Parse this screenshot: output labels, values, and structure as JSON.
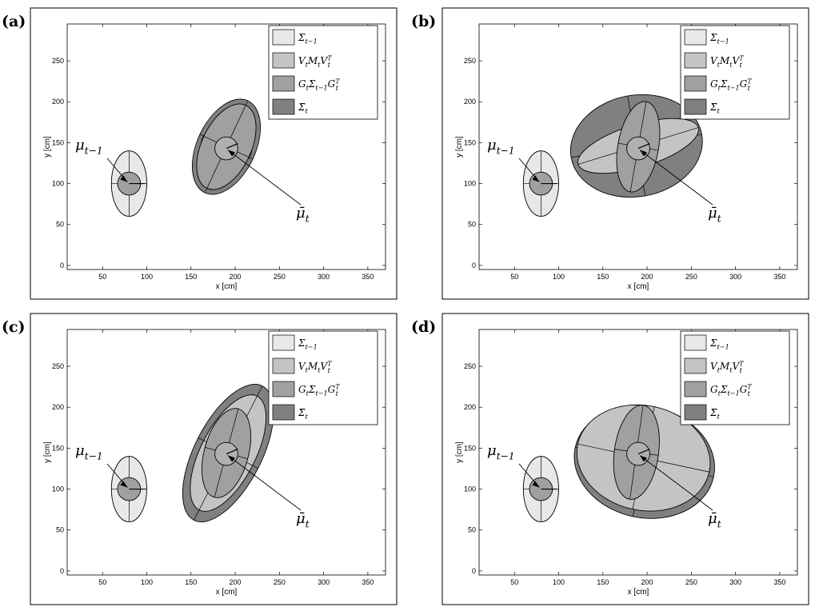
{
  "colors": {
    "sigma_prev": "#e8e8e8",
    "vmv": "#c4c4c4",
    "gsg": "#a0a0a0",
    "sigma_bar": "#808080",
    "mean_inner": "#b0b0b0",
    "frame": "#000000"
  },
  "labels": {
    "mu_prev": "μ",
    "mu_prev_sub": "t−1",
    "mu_bar": "μ̄",
    "mu_bar_sub": "t"
  },
  "legend": [
    {
      "key": "sigma_prev",
      "text": "Σ",
      "sub": "t−1",
      "sup": ""
    },
    {
      "key": "vmv",
      "text": "V",
      "sub": "t",
      "text2": "M",
      "sub2": "t",
      "text3": "V",
      "sub3": "t",
      "sup3": "T"
    },
    {
      "key": "gsg",
      "text": "G",
      "sub": "t",
      "text2": "Σ",
      "sub2": "t−1",
      "text3": "G",
      "sub3": "t",
      "sup3": "T"
    },
    {
      "key": "sigma_bar",
      "text": "Σ̄",
      "sub": "t",
      "sup": ""
    }
  ],
  "chart_data": [
    {
      "panel": "(a)",
      "type": "scatter",
      "xlabel": "x [cm]",
      "ylabel": "y [cm]",
      "xlim": [
        10,
        370
      ],
      "ylim": [
        -5,
        295
      ],
      "xticks": [
        50,
        100,
        150,
        200,
        250,
        300,
        350
      ],
      "yticks": [
        0,
        50,
        100,
        150,
        200,
        250
      ],
      "legend_position": "top-right",
      "prev_mean": {
        "x": 80,
        "y": 100
      },
      "pred_mean": {
        "x": 190,
        "y": 143
      },
      "sigma_bar_ellipse": {
        "cx": 190,
        "cy": 145,
        "rx": 33,
        "ry": 62,
        "angle": 25
      },
      "gsg_ellipse": {
        "cx": 190,
        "cy": 145,
        "rx": 28,
        "ry": 56,
        "angle": 25
      },
      "vmv_ellipse": {
        "cx": 190,
        "cy": 145,
        "rx": 29,
        "ry": 28,
        "angle": 0
      }
    },
    {
      "panel": "(b)",
      "type": "scatter",
      "xlabel": "x [cm]",
      "ylabel": "y [cm]",
      "xlim": [
        10,
        370
      ],
      "ylim": [
        -5,
        295
      ],
      "xticks": [
        50,
        100,
        150,
        200,
        250,
        300,
        350
      ],
      "yticks": [
        0,
        50,
        100,
        150,
        200,
        250
      ],
      "legend_position": "top-right",
      "prev_mean": {
        "x": 80,
        "y": 100
      },
      "pred_mean": {
        "x": 190,
        "y": 143
      },
      "sigma_bar_ellipse": {
        "cx": 188,
        "cy": 146,
        "rx": 75,
        "ry": 62,
        "angle": -10
      },
      "gsg_ellipse": {
        "cx": 190,
        "cy": 145,
        "rx": 23,
        "ry": 56,
        "angle": 10
      },
      "vmv_ellipse": {
        "cx": 190,
        "cy": 146,
        "rx": 71,
        "ry": 26,
        "angle": -17
      }
    },
    {
      "panel": "(c)",
      "type": "scatter",
      "xlabel": "x [cm]",
      "ylabel": "y [cm]",
      "xlim": [
        10,
        370
      ],
      "ylim": [
        -5,
        295
      ],
      "xticks": [
        50,
        100,
        150,
        200,
        250,
        300,
        350
      ],
      "yticks": [
        0,
        50,
        100,
        150,
        200,
        250
      ],
      "legend_position": "top-right",
      "prev_mean": {
        "x": 80,
        "y": 100
      },
      "pred_mean": {
        "x": 190,
        "y": 143
      },
      "sigma_bar_ellipse": {
        "cx": 192,
        "cy": 144,
        "rx": 38,
        "ry": 92,
        "angle": 27
      },
      "gsg_ellipse": {
        "cx": 190,
        "cy": 144,
        "rx": 25,
        "ry": 56,
        "angle": 15
      },
      "vmv_ellipse": {
        "cx": 192,
        "cy": 144,
        "rx": 31,
        "ry": 78,
        "angle": 27
      }
    },
    {
      "panel": "(d)",
      "type": "scatter",
      "xlabel": "x [cm]",
      "ylabel": "y [cm]",
      "xlim": [
        10,
        370
      ],
      "ylim": [
        -5,
        295
      ],
      "xticks": [
        50,
        100,
        150,
        200,
        250,
        300,
        350
      ],
      "yticks": [
        0,
        50,
        100,
        150,
        200,
        250
      ],
      "legend_position": "top-right",
      "prev_mean": {
        "x": 80,
        "y": 100
      },
      "pred_mean": {
        "x": 190,
        "y": 143
      },
      "sigma_bar_ellipse": {
        "cx": 197,
        "cy": 133,
        "rx": 80,
        "ry": 68,
        "angle": 12
      },
      "gsg_ellipse": {
        "cx": 188,
        "cy": 145,
        "rx": 25,
        "ry": 58,
        "angle": 8
      },
      "vmv_ellipse": {
        "cx": 196,
        "cy": 138,
        "rx": 76,
        "ry": 64,
        "angle": 12
      }
    }
  ],
  "prev_ellipse": {
    "cx": 80,
    "cy": 100,
    "rx": 20,
    "ry": 40
  }
}
